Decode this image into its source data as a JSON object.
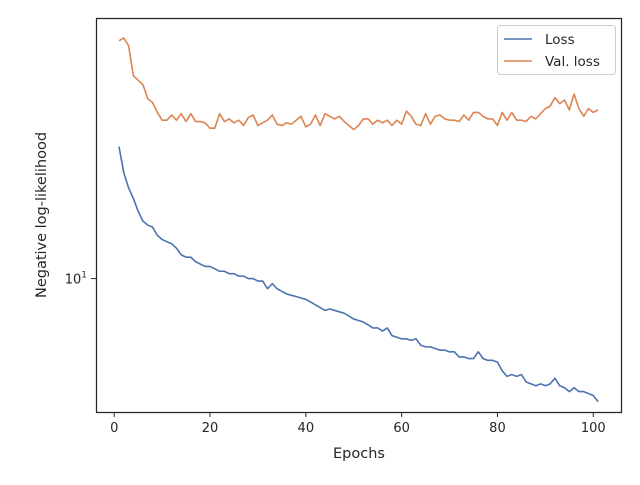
{
  "chart_data": {
    "type": "line",
    "xlabel": "Epochs",
    "ylabel": "Negative log-likelihood",
    "xlim": [
      -3.8,
      106
    ],
    "ylim": [
      5.85,
      28.5
    ],
    "yscale": "log",
    "xticks": [
      0,
      20,
      40,
      60,
      80,
      100
    ],
    "yticks": [
      {
        "value": 10,
        "base": "10",
        "exponent": "1"
      }
    ],
    "grid": false,
    "legend_position": "top-right",
    "x": [
      1,
      2,
      3,
      4,
      5,
      6,
      7,
      8,
      9,
      10,
      11,
      12,
      13,
      14,
      15,
      16,
      17,
      18,
      19,
      20,
      21,
      22,
      23,
      24,
      25,
      26,
      27,
      28,
      29,
      30,
      31,
      32,
      33,
      34,
      35,
      36,
      37,
      38,
      39,
      40,
      41,
      42,
      43,
      44,
      45,
      46,
      47,
      48,
      49,
      50,
      51,
      52,
      53,
      54,
      55,
      56,
      57,
      58,
      59,
      60,
      61,
      62,
      63,
      64,
      65,
      66,
      67,
      68,
      69,
      70,
      71,
      72,
      73,
      74,
      75,
      76,
      77,
      78,
      79,
      80,
      81,
      82,
      83,
      84,
      85,
      86,
      87,
      88,
      89,
      90,
      91,
      92,
      93,
      94,
      95,
      96,
      97,
      98,
      99,
      100,
      101
    ],
    "series": [
      {
        "name": "Loss",
        "color": "#4c72b0",
        "values": [
          17.0,
          15.3,
          14.4,
          13.8,
          13.1,
          12.6,
          12.4,
          12.3,
          11.9,
          11.7,
          11.6,
          11.5,
          11.3,
          11.0,
          10.9,
          10.9,
          10.7,
          10.6,
          10.5,
          10.5,
          10.4,
          10.3,
          10.3,
          10.2,
          10.2,
          10.1,
          10.1,
          10.0,
          10.0,
          9.9,
          9.9,
          9.6,
          9.8,
          9.6,
          9.5,
          9.4,
          9.35,
          9.3,
          9.25,
          9.2,
          9.1,
          9.0,
          8.9,
          8.8,
          8.85,
          8.8,
          8.75,
          8.7,
          8.6,
          8.5,
          8.45,
          8.4,
          8.3,
          8.2,
          8.2,
          8.1,
          8.2,
          7.95,
          7.9,
          7.85,
          7.85,
          7.8,
          7.85,
          7.65,
          7.6,
          7.6,
          7.55,
          7.5,
          7.5,
          7.45,
          7.45,
          7.3,
          7.3,
          7.25,
          7.25,
          7.45,
          7.25,
          7.2,
          7.2,
          7.15,
          6.9,
          6.75,
          6.8,
          6.75,
          6.8,
          6.6,
          6.55,
          6.5,
          6.55,
          6.5,
          6.55,
          6.7,
          6.5,
          6.45,
          6.35,
          6.45,
          6.35,
          6.35,
          6.3,
          6.25,
          6.1
        ]
      },
      {
        "name": "Val. loss",
        "color": "#dd8452",
        "values": [
          26.0,
          26.3,
          25.5,
          22.6,
          22.2,
          21.8,
          20.6,
          20.3,
          19.5,
          18.9,
          18.9,
          19.3,
          18.9,
          19.4,
          18.8,
          19.4,
          18.8,
          18.8,
          18.7,
          18.3,
          18.3,
          19.4,
          18.8,
          19.0,
          18.7,
          18.9,
          18.5,
          19.1,
          19.3,
          18.5,
          18.7,
          18.9,
          19.3,
          18.6,
          18.5,
          18.7,
          18.6,
          18.9,
          19.2,
          18.4,
          18.6,
          19.3,
          18.5,
          19.4,
          19.2,
          19.0,
          19.2,
          18.8,
          18.5,
          18.2,
          18.5,
          19.0,
          19.0,
          18.6,
          18.9,
          18.7,
          18.9,
          18.5,
          18.9,
          18.6,
          19.6,
          19.2,
          18.6,
          18.5,
          19.4,
          18.6,
          19.2,
          19.3,
          19.0,
          18.9,
          18.9,
          18.8,
          19.3,
          18.9,
          19.5,
          19.5,
          19.2,
          19.0,
          19.0,
          18.5,
          19.5,
          18.9,
          19.5,
          18.9,
          18.9,
          18.8,
          19.2,
          19.0,
          19.4,
          19.8,
          20.0,
          20.7,
          20.2,
          20.5,
          19.7,
          21.0,
          19.8,
          19.2,
          19.8,
          19.5,
          19.7
        ]
      }
    ]
  }
}
